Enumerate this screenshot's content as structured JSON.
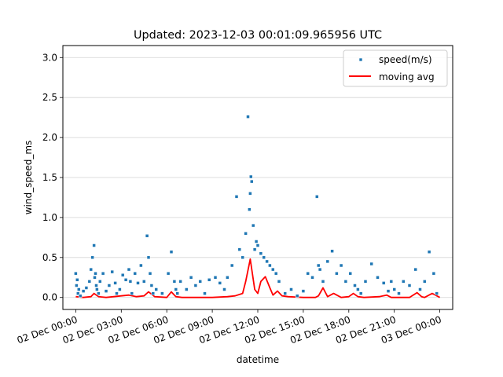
{
  "chart_data": {
    "type": "scatter",
    "title": "Updated: 2023-12-03 00:01:09.965956 UTC",
    "xlabel": "datetime",
    "ylabel": "wind_speed_ms",
    "xlim_hours": [
      -0.85,
      24.85
    ],
    "ylim": [
      -0.15,
      3.15
    ],
    "yticks": [
      0.0,
      0.5,
      1.0,
      1.5,
      2.0,
      2.5,
      3.0
    ],
    "ytick_labels": [
      "0.0",
      "0.5",
      "1.0",
      "1.5",
      "2.0",
      "2.5",
      "3.0"
    ],
    "xticks_hours": [
      0,
      3,
      6,
      9,
      12,
      15,
      18,
      21,
      24
    ],
    "xtick_labels": [
      "02 Dec 00:00",
      "02 Dec 03:00",
      "02 Dec 06:00",
      "02 Dec 09:00",
      "02 Dec 12:00",
      "02 Dec 15:00",
      "02 Dec 18:00",
      "02 Dec 21:00",
      "03 Dec 00:00"
    ],
    "grid": "horizontal",
    "legend_position": "top-right",
    "series": [
      {
        "name": "speed(m/s)",
        "kind": "scatter",
        "color": "#1f77b4",
        "hours": [
          0.0,
          0.05,
          0.1,
          0.15,
          0.2,
          0.3,
          0.5,
          0.7,
          0.9,
          1.0,
          1.1,
          1.2,
          1.25,
          1.3,
          1.35,
          1.4,
          1.5,
          1.6,
          1.8,
          2.0,
          2.2,
          2.4,
          2.6,
          2.7,
          2.9,
          3.1,
          3.3,
          3.5,
          3.6,
          3.7,
          3.9,
          4.1,
          4.3,
          4.5,
          4.7,
          4.8,
          4.9,
          5.0,
          5.1,
          5.3,
          5.7,
          6.1,
          6.3,
          6.5,
          6.6,
          6.7,
          6.9,
          7.3,
          7.6,
          7.9,
          8.2,
          8.5,
          8.8,
          9.2,
          9.5,
          9.8,
          10.0,
          10.3,
          10.6,
          10.8,
          11.0,
          11.2,
          11.35,
          11.45,
          11.5,
          11.55,
          11.6,
          11.7,
          11.8,
          11.9,
          12.0,
          12.2,
          12.4,
          12.6,
          12.8,
          13.0,
          13.2,
          13.4,
          13.8,
          14.2,
          14.6,
          15.0,
          15.3,
          15.6,
          15.9,
          16.0,
          16.1,
          16.3,
          16.6,
          16.9,
          17.2,
          17.5,
          17.8,
          18.1,
          18.4,
          18.6,
          18.8,
          19.1,
          19.5,
          19.9,
          20.3,
          20.6,
          20.8,
          21.0,
          21.3,
          21.6,
          22.0,
          22.4,
          22.7,
          23.0,
          23.3,
          23.6,
          23.8
        ],
        "values": [
          0.3,
          0.15,
          0.22,
          0.05,
          0.1,
          0.02,
          0.08,
          0.12,
          0.2,
          0.35,
          0.5,
          0.65,
          0.25,
          0.3,
          0.15,
          0.1,
          0.05,
          0.2,
          0.3,
          0.08,
          0.15,
          0.32,
          0.18,
          0.05,
          0.1,
          0.28,
          0.22,
          0.35,
          0.2,
          0.05,
          0.3,
          0.18,
          0.4,
          0.2,
          0.77,
          0.5,
          0.3,
          0.15,
          0.05,
          0.1,
          0.05,
          0.3,
          0.57,
          0.2,
          0.1,
          0.05,
          0.2,
          0.1,
          0.25,
          0.15,
          0.2,
          0.05,
          0.22,
          0.25,
          0.18,
          0.1,
          0.25,
          0.4,
          1.26,
          0.6,
          0.5,
          0.8,
          2.26,
          1.1,
          1.3,
          1.51,
          1.45,
          0.9,
          0.6,
          0.7,
          0.65,
          0.55,
          0.5,
          0.45,
          0.4,
          0.35,
          0.3,
          0.2,
          0.05,
          0.1,
          0.02,
          0.08,
          0.3,
          0.25,
          1.26,
          0.4,
          0.35,
          0.2,
          0.45,
          0.58,
          0.3,
          0.4,
          0.2,
          0.3,
          0.15,
          0.1,
          0.05,
          0.2,
          0.42,
          0.25,
          0.18,
          0.08,
          0.2,
          0.1,
          0.05,
          0.2,
          0.15,
          0.35,
          0.1,
          0.2,
          0.57,
          0.3,
          0.05
        ]
      },
      {
        "name": "moving avg",
        "kind": "line",
        "color": "#ff0000",
        "hours": [
          0.0,
          0.5,
          1.0,
          1.2,
          1.5,
          2.0,
          3.0,
          3.5,
          4.0,
          4.5,
          4.8,
          5.2,
          6.0,
          6.3,
          6.6,
          7.0,
          8.0,
          9.0,
          10.0,
          10.5,
          11.0,
          11.2,
          11.5,
          11.8,
          12.0,
          12.2,
          12.5,
          12.8,
          13.0,
          13.3,
          13.6,
          14.0,
          15.0,
          15.5,
          15.8,
          16.0,
          16.3,
          16.6,
          17.0,
          17.5,
          18.0,
          18.3,
          18.6,
          19.0,
          20.0,
          20.5,
          20.8,
          21.0,
          22.0,
          22.5,
          22.8,
          23.0,
          23.5,
          24.0
        ],
        "values": [
          0.01,
          0.0,
          0.01,
          0.05,
          0.01,
          0.0,
          0.02,
          0.03,
          0.01,
          0.02,
          0.07,
          0.01,
          0.0,
          0.07,
          0.01,
          0.0,
          0.0,
          0.0,
          0.01,
          0.02,
          0.05,
          0.2,
          0.48,
          0.1,
          0.05,
          0.2,
          0.26,
          0.12,
          0.03,
          0.08,
          0.02,
          0.01,
          0.0,
          0.0,
          0.0,
          0.02,
          0.12,
          0.01,
          0.05,
          0.0,
          0.01,
          0.05,
          0.01,
          0.0,
          0.01,
          0.03,
          0.0,
          0.0,
          0.0,
          0.06,
          0.01,
          0.0,
          0.05,
          0.0
        ]
      }
    ]
  }
}
